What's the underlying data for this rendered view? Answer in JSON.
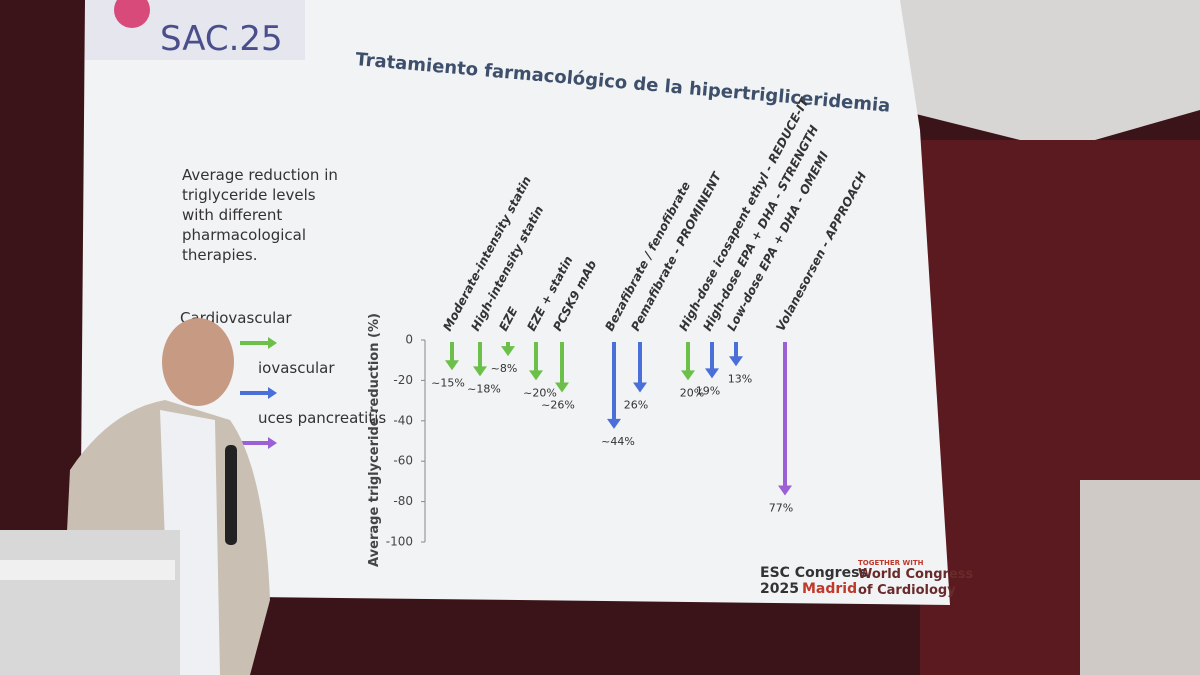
{
  "slide": {
    "logo": "SAC.25",
    "title": "Tratamiento farmacológico de la hipertrigliceridemia",
    "description": [
      "Average reduction in",
      "triglyceride levels",
      "with different",
      "pharmacological",
      "therapies."
    ],
    "footer": {
      "esc": [
        "ESC Congress",
        "2025",
        "Madrid"
      ],
      "together": "TOGETHER WITH",
      "wcc": [
        "World Congress",
        "of Cardiology"
      ]
    }
  },
  "chart_data": {
    "type": "arrow",
    "y_label": "Average triglyceride reduction (%)",
    "categories": [
      "Moderate-intensity statin",
      "High-intensity statin",
      "EZE",
      "EZE + statin",
      "PCSK9 mAb",
      "Bezafibrate / fenofibrate",
      "Pemafibrate - PROMINENT",
      "High-dose icosapent ethyl - REDUCE-IT",
      "High-dose EPA + DHA - STRENGTH",
      "Low-dose EPA + DHA - OMEMI",
      "Volanesorsen - APPROACH"
    ],
    "values": [
      -15,
      -18,
      -8,
      -20,
      -26,
      -44,
      -26,
      -20,
      -19,
      -13,
      -77
    ],
    "value_labels": [
      "~15%",
      "~18%",
      "~8%",
      "~20%",
      "~26%",
      "~44%",
      "26%",
      "20%",
      "19%",
      "13%",
      "77%"
    ],
    "colors": [
      "#6cc04a",
      "#6cc04a",
      "#6cc04a",
      "#6cc04a",
      "#6cc04a",
      "#4a6fd8",
      "#4a6fd8",
      "#6cc04a",
      "#4a6fd8",
      "#4a6fd8",
      "#9b5fd6"
    ],
    "legend": [
      {
        "name": "Cardiovascular",
        "color": "#6cc04a"
      },
      {
        "name": "iovascular",
        "color": "#4a6fd8"
      },
      {
        "name": "uces pancreatitis",
        "color": "#9b5fd6"
      }
    ],
    "ylim": [
      -100,
      0
    ],
    "yticks": [
      0,
      -20,
      -40,
      -60,
      -80,
      -100
    ]
  }
}
